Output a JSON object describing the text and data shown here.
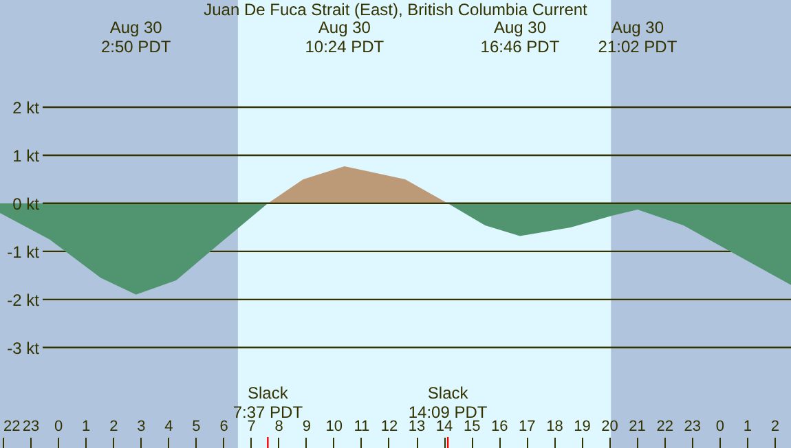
{
  "chart_data": {
    "type": "area",
    "title": "Juan De Fuca Strait (East), British Columbia Current",
    "series": [
      {
        "color": "#519570",
        "x": [
          "--08-29T21:54",
          "--08-29T23:42",
          "--08-30T01:33",
          "--08-30T02:50",
          "--08-30T04:18",
          "--08-30T05:48",
          "--08-30T07:37"
        ],
        "values": [
          -0.2,
          -0.75,
          -1.55,
          -1.9,
          -1.6,
          -0.87,
          0
        ]
      },
      {
        "color": "#bc9a78",
        "x": [
          "--08-30T07:37",
          "--08-30T08:54",
          "--08-30T10:24",
          "--08-30T12:36",
          "--08-30T14:09"
        ],
        "values": [
          0,
          0.5,
          0.77,
          0.5,
          0
        ]
      },
      {
        "color": "#519570",
        "x": [
          "--08-30T14:09",
          "--08-30T15:30",
          "--08-30T16:46",
          "--08-30T18:36",
          "--08-30T20:06",
          "--08-30T21:02",
          "--08-30T22:42",
          "--08-31T00:18",
          "--08-31T02:36"
        ],
        "values": [
          0,
          -0.46,
          -0.68,
          -0.5,
          -0.26,
          -0.13,
          -0.46,
          -0.97,
          -1.7
        ]
      }
    ],
    "xlim": [
      "--08-29T21:54",
      "--08-31T02:36"
    ],
    "xticks": [
      {
        "value": "--08-29T22:00",
        "label": "22"
      },
      {
        "value": "--08-29T23:00",
        "label": "23"
      },
      {
        "value": "--08-30T00:00",
        "label": "0"
      },
      {
        "value": "--08-30T01:00",
        "label": "1"
      },
      {
        "value": "--08-30T02:00",
        "label": "2"
      },
      {
        "value": "--08-30T03:00",
        "label": "3"
      },
      {
        "value": "--08-30T04:00",
        "label": "4"
      },
      {
        "value": "--08-30T05:00",
        "label": "5"
      },
      {
        "value": "--08-30T06:00",
        "label": "6"
      },
      {
        "value": "--08-30T07:00",
        "label": "7"
      },
      {
        "value": "--08-30T08:00",
        "label": "8"
      },
      {
        "value": "--08-30T09:00",
        "label": "9"
      },
      {
        "value": "--08-30T10:00",
        "label": "10"
      },
      {
        "value": "--08-30T11:00",
        "label": "11"
      },
      {
        "value": "--08-30T12:00",
        "label": "12"
      },
      {
        "value": "--08-30T13:00",
        "label": "13"
      },
      {
        "value": "--08-30T14:00",
        "label": "14"
      },
      {
        "value": "--08-30T15:00",
        "label": "15"
      },
      {
        "value": "--08-30T16:00",
        "label": "16"
      },
      {
        "value": "--08-30T17:00",
        "label": "17"
      },
      {
        "value": "--08-30T18:00",
        "label": "18"
      },
      {
        "value": "--08-30T19:00",
        "label": "19"
      },
      {
        "value": "--08-30T20:00",
        "label": "20"
      },
      {
        "value": "--08-30T21:00",
        "label": "21"
      },
      {
        "value": "--08-30T22:00",
        "label": "22"
      },
      {
        "value": "--08-30T23:00",
        "label": "23"
      },
      {
        "value": "--08-31T00:00",
        "label": "0"
      },
      {
        "value": "--08-31T01:00",
        "label": "1"
      },
      {
        "value": "--08-31T02:00",
        "label": "2"
      }
    ],
    "ylim": [
      -5.09,
      4.23
    ],
    "yticks": [
      {
        "value": 2,
        "label": "2 kt"
      },
      {
        "value": 1,
        "label": "1 kt"
      },
      {
        "value": 0,
        "label": "0 kt"
      },
      {
        "value": -1,
        "label": "-1 kt"
      },
      {
        "value": -2,
        "label": "-2 kt"
      },
      {
        "value": -3,
        "label": "-3 kt"
      }
    ],
    "grid": "y",
    "bands": [
      {
        "axis": "x",
        "from": "--08-29T21:54",
        "to": "--08-30T06:32",
        "color": "#b0c4de"
      },
      {
        "axis": "x",
        "from": "--08-30T06:32",
        "to": "--08-30T20:04",
        "color": "#dff7fe"
      },
      {
        "axis": "x",
        "from": "--08-30T20:04",
        "to": "--08-31T02:36",
        "color": "#b0c4de"
      }
    ],
    "annotations": [
      "Aug 30\n2:50 PDT",
      "Aug 30\n10:24 PDT",
      "Aug 30\n16:46 PDT",
      "Aug 30\n21:02 PDT",
      "Slack\n7:37 PDT",
      "Slack\n14:09 PDT"
    ]
  }
}
